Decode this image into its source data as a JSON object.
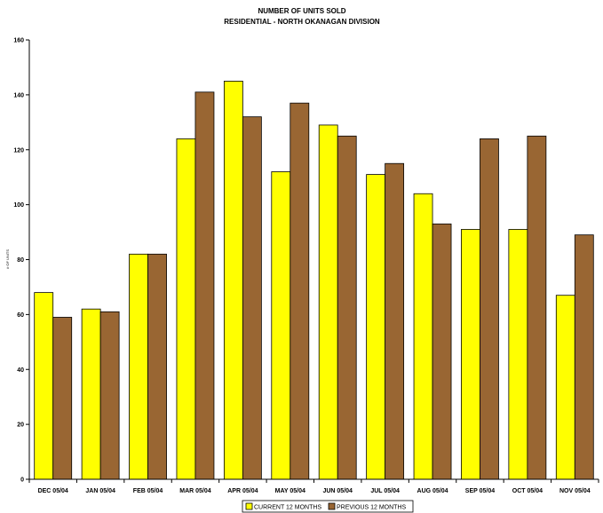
{
  "chart_data": {
    "type": "bar",
    "title": "NUMBER OF UNITS SOLD",
    "subtitle": "RESIDENTIAL - NORTH OKANAGAN DIVISION",
    "xlabel": "",
    "ylabel": "# OF UNITS",
    "ylim": [
      0,
      160
    ],
    "yticks": [
      0,
      20,
      40,
      60,
      80,
      100,
      120,
      140,
      160
    ],
    "grid": false,
    "legend_position": "bottom",
    "categories": [
      "DEC 05/04",
      "JAN 05/04",
      "FEB 05/04",
      "MAR 05/04",
      "APR 05/04",
      "MAY 05/04",
      "JUN 05/04",
      "JUL 05/04",
      "AUG 05/04",
      "SEP 05/04",
      "OCT 05/04",
      "NOV 05/04"
    ],
    "series": [
      {
        "name": "CURRENT 12 MONTHS",
        "color": "#ffff00",
        "values": [
          68,
          62,
          82,
          124,
          145,
          112,
          129,
          111,
          104,
          91,
          91,
          67
        ]
      },
      {
        "name": "PREVIOUS 12 MONTHS",
        "color": "#996633",
        "values": [
          59,
          61,
          82,
          141,
          132,
          137,
          125,
          115,
          93,
          124,
          125,
          89
        ]
      }
    ]
  }
}
